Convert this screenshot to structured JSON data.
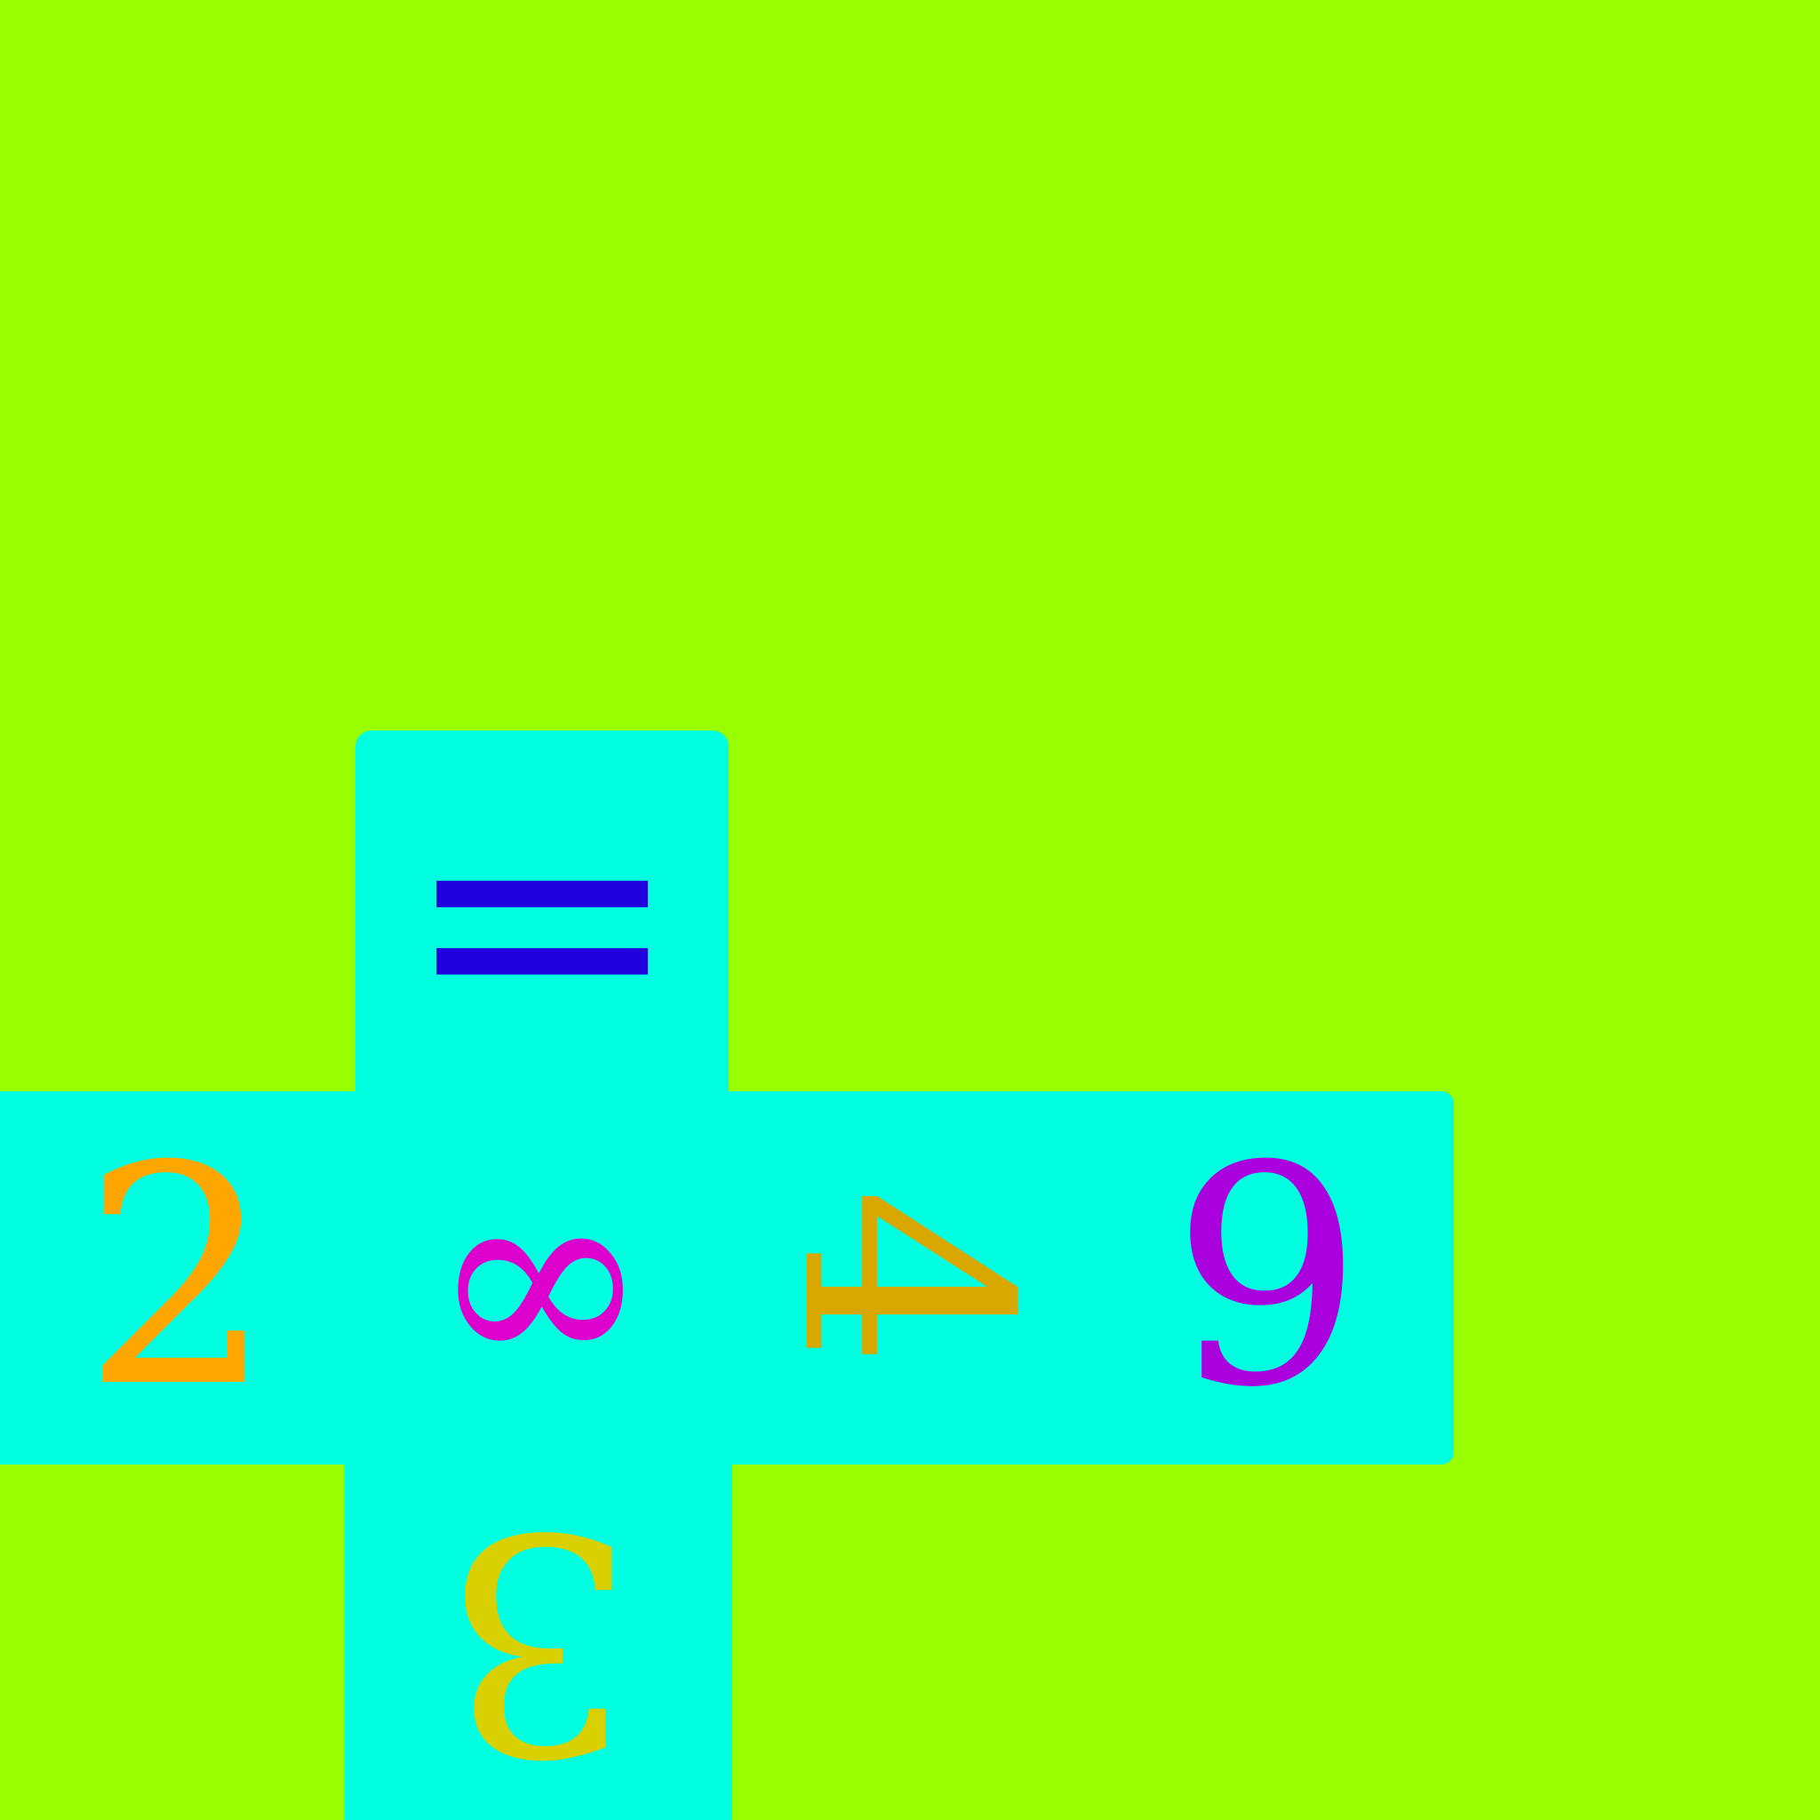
{
  "board": {
    "background_color": "#99ff00",
    "cell_color": "#00ffe1",
    "tiles": [
      {
        "symbol": "=",
        "color": "#2200dd",
        "orientation": "upright"
      },
      {
        "symbol": "2",
        "color": "#ffa600",
        "orientation": "upright"
      },
      {
        "symbol": "∞",
        "color": "#dd00cc",
        "orientation": "upright"
      },
      {
        "symbol": "4",
        "color": "#d8a800",
        "orientation": "rotated-90"
      },
      {
        "symbol": "9",
        "color": "#aa00dd",
        "orientation": "upright"
      },
      {
        "symbol": "3",
        "color": "#d8d000",
        "orientation": "rotated-180"
      }
    ]
  }
}
